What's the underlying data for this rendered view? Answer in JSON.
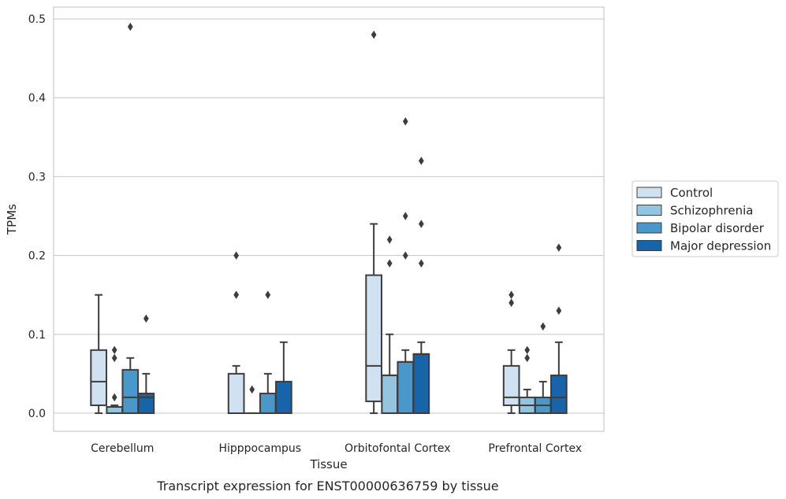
{
  "caption": "Transcript expression for ENST00000636759 by tissue",
  "chart_data": {
    "type": "box",
    "xlabel": "Tissue",
    "ylabel": "TPMs",
    "ylim": [
      -0.023,
      0.515
    ],
    "yticks": [
      0.0,
      0.1,
      0.2,
      0.3,
      0.4,
      0.5
    ],
    "ytick_labels": [
      "0.0",
      "0.1",
      "0.2",
      "0.3",
      "0.4",
      "0.5"
    ],
    "grid": "horizontal",
    "legend_position": "right",
    "categories": [
      "Cerebellum",
      "Hipppocampus",
      "Orbitofontal Cortex",
      "Prefrontal Cortex"
    ],
    "series": [
      {
        "name": "Control",
        "color": "#d0e1f2",
        "boxes": [
          {
            "whislo": 0.0,
            "q1": 0.01,
            "med": 0.04,
            "q3": 0.08,
            "whishi": 0.15,
            "fliers": []
          },
          {
            "whislo": 0.0,
            "q1": 0.0,
            "med": 0.0,
            "q3": 0.05,
            "whishi": 0.06,
            "fliers": [
              0.15,
              0.2
            ]
          },
          {
            "whislo": 0.0,
            "q1": 0.015,
            "med": 0.06,
            "q3": 0.175,
            "whishi": 0.24,
            "fliers": [
              0.48
            ]
          },
          {
            "whislo": 0.0,
            "q1": 0.01,
            "med": 0.02,
            "q3": 0.06,
            "whishi": 0.08,
            "fliers": [
              0.14,
              0.15
            ]
          }
        ]
      },
      {
        "name": "Schizophrenia",
        "color": "#94c4df",
        "boxes": [
          {
            "whislo": 0.0,
            "q1": 0.0,
            "med": 0.008,
            "q3": 0.008,
            "whishi": 0.01,
            "fliers": [
              0.02,
              0.07,
              0.08
            ]
          },
          {
            "whislo": 0.0,
            "q1": 0.0,
            "med": 0.0,
            "q3": 0.0,
            "whishi": 0.0,
            "fliers": [
              0.03
            ]
          },
          {
            "whislo": 0.0,
            "q1": 0.0,
            "med": 0.048,
            "q3": 0.048,
            "whishi": 0.1,
            "fliers": [
              0.19,
              0.22
            ]
          },
          {
            "whislo": 0.0,
            "q1": 0.0,
            "med": 0.01,
            "q3": 0.02,
            "whishi": 0.03,
            "fliers": [
              0.07,
              0.08
            ]
          }
        ]
      },
      {
        "name": "Bipolar disorder",
        "color": "#4a98c9",
        "boxes": [
          {
            "whislo": 0.0,
            "q1": 0.0,
            "med": 0.02,
            "q3": 0.055,
            "whishi": 0.07,
            "fliers": [
              0.49
            ]
          },
          {
            "whislo": 0.0,
            "q1": 0.0,
            "med": 0.0,
            "q3": 0.025,
            "whishi": 0.05,
            "fliers": [
              0.15
            ]
          },
          {
            "whislo": 0.0,
            "q1": 0.0,
            "med": 0.065,
            "q3": 0.065,
            "whishi": 0.08,
            "fliers": [
              0.2,
              0.25,
              0.37
            ]
          },
          {
            "whislo": 0.0,
            "q1": 0.0,
            "med": 0.01,
            "q3": 0.02,
            "whishi": 0.04,
            "fliers": [
              0.11
            ]
          }
        ]
      },
      {
        "name": "Major depression",
        "color": "#1764ab",
        "boxes": [
          {
            "whislo": 0.0,
            "q1": 0.0,
            "med": 0.02,
            "q3": 0.025,
            "whishi": 0.05,
            "fliers": [
              0.12
            ]
          },
          {
            "whislo": 0.0,
            "q1": 0.0,
            "med": 0.0,
            "q3": 0.04,
            "whishi": 0.09,
            "fliers": []
          },
          {
            "whislo": 0.0,
            "q1": 0.0,
            "med": 0.075,
            "q3": 0.075,
            "whishi": 0.09,
            "fliers": [
              0.19,
              0.24,
              0.32
            ]
          },
          {
            "whislo": 0.0,
            "q1": 0.0,
            "med": 0.02,
            "q3": 0.048,
            "whishi": 0.09,
            "fliers": [
              0.13,
              0.21
            ]
          }
        ]
      }
    ]
  }
}
